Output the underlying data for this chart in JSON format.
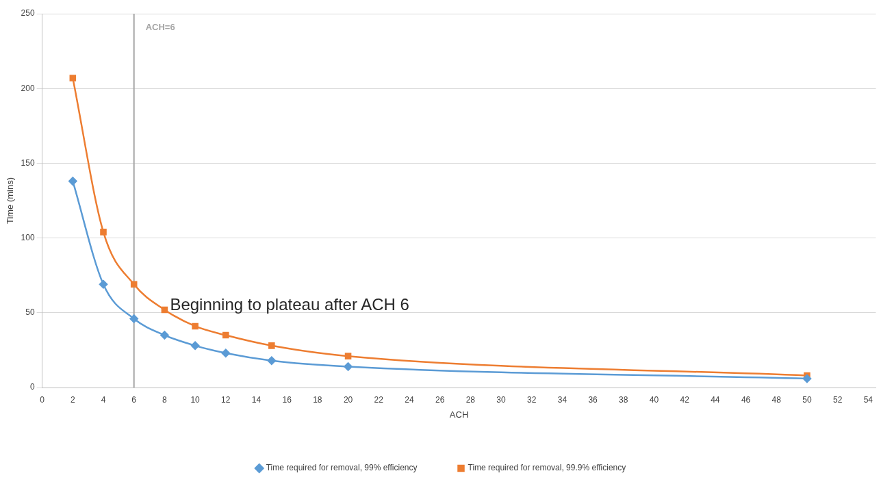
{
  "chart_data": {
    "type": "line",
    "xlabel": "ACH",
    "ylabel": "Time (mins)",
    "xlim": [
      0,
      54.5
    ],
    "xticks": [
      0,
      2,
      4,
      6,
      8,
      10,
      12,
      14,
      16,
      18,
      20,
      22,
      24,
      26,
      28,
      30,
      32,
      34,
      36,
      38,
      40,
      42,
      44,
      46,
      48,
      50,
      52,
      54
    ],
    "ylim": [
      0,
      250
    ],
    "yticks": [
      0,
      50,
      100,
      150,
      200,
      250
    ],
    "x": [
      2,
      4,
      6,
      8,
      10,
      12,
      15,
      20,
      50
    ],
    "series": [
      {
        "name": "Time required for removal, 99% efficiency",
        "color": "#5b9bd5",
        "marker": "diamond",
        "values": [
          138,
          69,
          46,
          35,
          28,
          23,
          18,
          14,
          6
        ]
      },
      {
        "name": "Time required for removal, 99.9% efficiency",
        "color": "#ed7d31",
        "marker": "square",
        "values": [
          207,
          104,
          69,
          52,
          41,
          35,
          28,
          21,
          8
        ]
      }
    ],
    "ref_lines": [
      {
        "axis": "x",
        "value": 6,
        "label": "ACH=6",
        "color": "#a5a5a5"
      }
    ],
    "annotations": [
      {
        "text": "Beginning to plateau after ACH 6",
        "x": 8,
        "y": 52
      }
    ],
    "grid": "y",
    "legend": "bottom"
  }
}
